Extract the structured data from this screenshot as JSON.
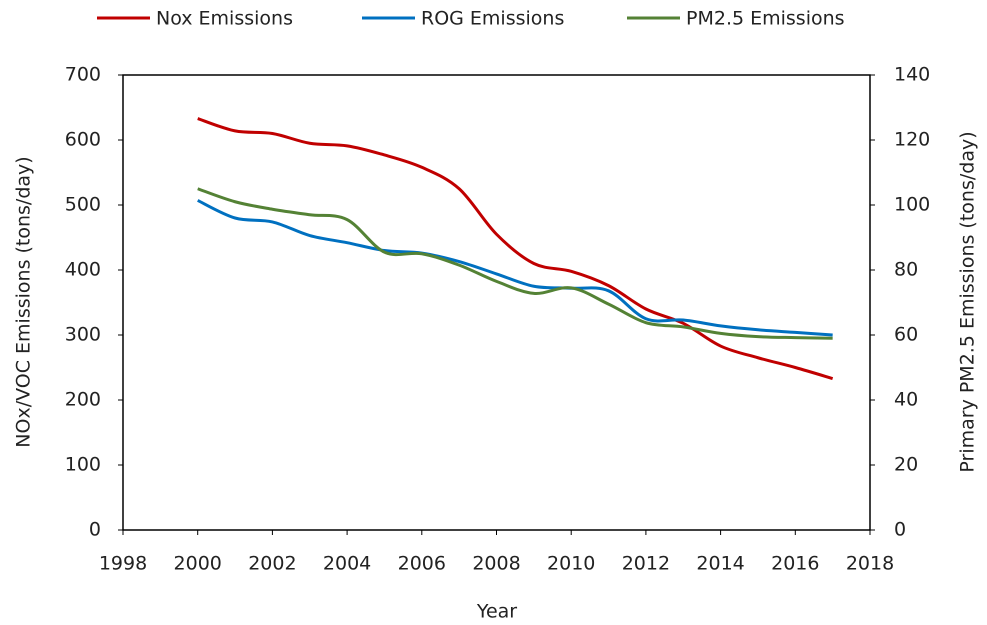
{
  "chart_data": {
    "type": "line",
    "x_label": "Year",
    "y_label": "NOx/VOC Emissions (tons/day)",
    "y2_label": "Primary PM2.5 Emissions (tons/day)",
    "x": [
      2000,
      2001,
      2002,
      2003,
      2004,
      2005,
      2006,
      2007,
      2008,
      2009,
      2010,
      2011,
      2012,
      2013,
      2014,
      2015,
      2016,
      2017
    ],
    "series": [
      {
        "name": "Nox Emissions",
        "color": "#c00000",
        "values": [
          633,
          614,
          610,
          595,
          591,
          577,
          558,
          525,
          455,
          410,
          398,
          376,
          340,
          318,
          283,
          265,
          250,
          233
        ]
      },
      {
        "name": "ROG Emissions",
        "color": "#0070c0",
        "values": [
          507,
          480,
          474,
          453,
          442,
          430,
          426,
          413,
          394,
          375,
          372,
          368,
          325,
          323,
          314,
          308,
          304,
          300
        ]
      },
      {
        "name": "PM2.5 Emissions",
        "color": "#548235",
        "axis": "y2",
        "values": [
          105,
          101,
          98.7,
          97,
          95.5,
          85.5,
          85,
          81.5,
          76.5,
          72.8,
          74.5,
          69.5,
          63.8,
          62.5,
          60.5,
          59.5,
          59.2,
          59
        ]
      }
    ],
    "xlim": [
      1998,
      2018
    ],
    "xticks": [
      1998,
      2000,
      2002,
      2004,
      2006,
      2008,
      2010,
      2012,
      2014,
      2016,
      2018
    ],
    "ylim": [
      0,
      700
    ],
    "yticks": [
      0,
      100,
      200,
      300,
      400,
      500,
      600,
      700
    ],
    "y2lim": [
      0,
      140
    ],
    "y2ticks": [
      0,
      20,
      40,
      60,
      80,
      100,
      120,
      140
    ],
    "grid": false,
    "legend": "top"
  }
}
